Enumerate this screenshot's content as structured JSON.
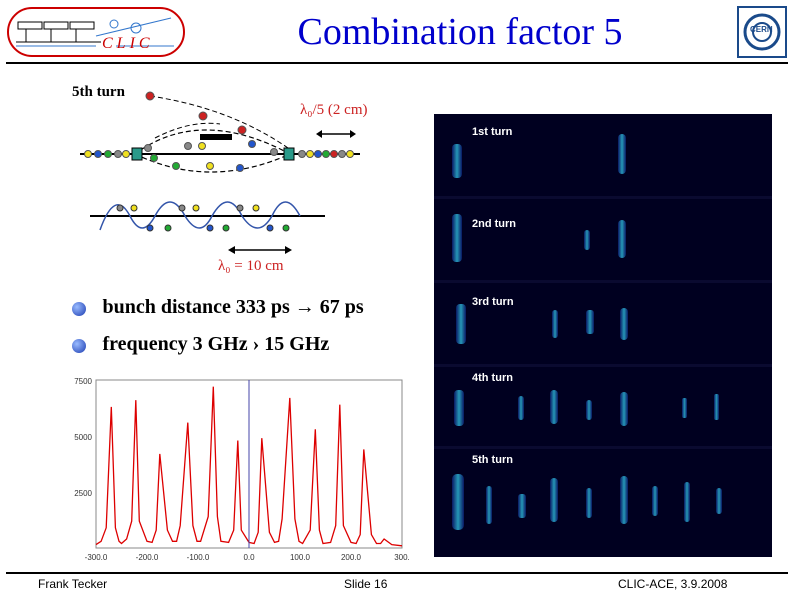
{
  "header": {
    "title": "Combination factor 5",
    "clic_logo_text": "CLIC",
    "cern_logo_text": "CERN"
  },
  "diagram": {
    "turn_label": "5th turn",
    "lambda_top": "λ₀/5 (2 cm)",
    "lambda_bottom": "λ₀ = 10 cm"
  },
  "bullets": [
    {
      "text": "bunch distance 333 ps → 67 ps"
    },
    {
      "text": "frequency 3 GHz  › 15 GHz"
    }
  ],
  "turn_labels": [
    "1st turn",
    "2nd turn",
    "3rd turn",
    "4th turn",
    "5th turn"
  ],
  "chart_data": {
    "type": "line",
    "x": [
      -300,
      -290,
      -280,
      -270,
      -262,
      -255,
      -250,
      -240,
      -230,
      -222,
      -215,
      -200,
      -190,
      -182,
      -175,
      -160,
      -150,
      -142,
      -135,
      -120,
      -110,
      -102,
      -95,
      -80,
      -70,
      -62,
      -55,
      -40,
      -30,
      -22,
      -15,
      0,
      10,
      18,
      25,
      40,
      50,
      58,
      65,
      80,
      90,
      98,
      105,
      120,
      130,
      138,
      145,
      160,
      170,
      178,
      185,
      200,
      210,
      218,
      225,
      240,
      250,
      258,
      265,
      280,
      300
    ],
    "series": [
      {
        "color": "#dd0000",
        "values": [
          150,
          300,
          900,
          6300,
          900,
          300,
          200,
          400,
          1200,
          6600,
          1200,
          300,
          250,
          800,
          4200,
          800,
          300,
          300,
          1000,
          5600,
          1000,
          300,
          300,
          1400,
          7200,
          1400,
          300,
          250,
          800,
          4800,
          800,
          250,
          200,
          700,
          4900,
          700,
          250,
          300,
          1300,
          6700,
          1300,
          300,
          200,
          800,
          5300,
          800,
          200,
          250,
          1000,
          6400,
          1000,
          250,
          200,
          600,
          4400,
          600,
          200,
          200,
          400,
          150,
          100
        ]
      }
    ],
    "xlim": [
      -300,
      300
    ],
    "ylim": [
      0,
      7500
    ],
    "x_ticks": [
      "-300.0",
      "-200.0",
      "-100.0",
      "0.0",
      "100.0",
      "200.0",
      "300."
    ],
    "y_ticks": [
      "2500",
      "5000",
      "7500"
    ],
    "y_tick_values": [
      2500,
      5000,
      7500
    ],
    "x_tick_values": [
      -300,
      -200,
      -100,
      0,
      100,
      200,
      300
    ],
    "cursor_x": 0
  },
  "footer": {
    "author": "Frank Tecker",
    "slide": "Slide 16",
    "event": "CLIC-ACE, 3.9.2008"
  }
}
